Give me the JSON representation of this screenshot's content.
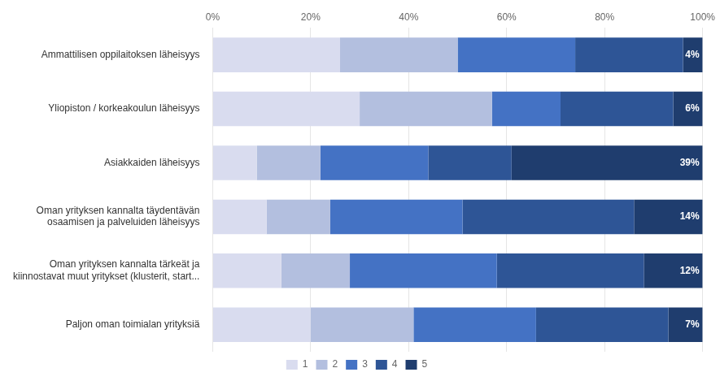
{
  "chart_data": {
    "type": "bar",
    "orientation": "horizontal",
    "stacked": true,
    "categories": [
      "Ammattilisen oppilaitoksen läheisyys",
      "Yliopiston / korkeakoulun läheisyys",
      "Asiakkaiden läheisyys",
      "Oman yrityksen kannalta täydentävän\nosaamisen ja palveluiden läheisyys",
      "Oman yrityksen kannalta tärkeät ja\nkiinnostavat muut yritykset (klusterit, start...",
      "Paljon oman toimialan yrityksiä"
    ],
    "series": [
      {
        "name": "1",
        "color": "#d9dcef",
        "values": [
          26,
          30,
          9,
          11,
          14,
          20
        ]
      },
      {
        "name": "2",
        "color": "#b3bfdf",
        "values": [
          24,
          27,
          13,
          13,
          14,
          21
        ]
      },
      {
        "name": "3",
        "color": "#4472c4",
        "values": [
          24,
          14,
          22,
          27,
          30,
          25
        ]
      },
      {
        "name": "4",
        "color": "#2e5596",
        "values": [
          22,
          23,
          17,
          35,
          30,
          27
        ]
      },
      {
        "name": "5",
        "color": "#1f3d6e",
        "values": [
          4,
          6,
          39,
          14,
          12,
          7
        ],
        "data_labels": true,
        "value_labels": [
          "4%",
          "6%",
          "39%",
          "14%",
          "12%",
          "7%"
        ]
      }
    ],
    "xlim": [
      0,
      100
    ],
    "xticks": [
      {
        "value": 0,
        "label": "0%"
      },
      {
        "value": 20,
        "label": "20%"
      },
      {
        "value": 40,
        "label": "40%"
      },
      {
        "value": 60,
        "label": "60%"
      },
      {
        "value": 80,
        "label": "80%"
      },
      {
        "value": 100,
        "label": "100%"
      }
    ],
    "grid": true,
    "legend": "bottom"
  }
}
